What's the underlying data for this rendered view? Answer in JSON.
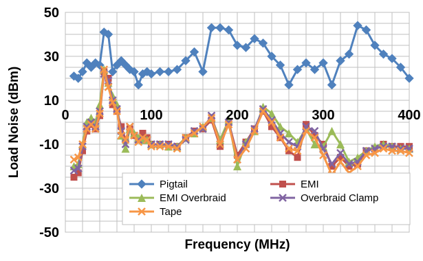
{
  "chart_data": {
    "type": "line",
    "xlabel": "Frequency (MHz)",
    "ylabel": "Load Noise (dBm)",
    "xlim": [
      0,
      400
    ],
    "ylim": [
      -50,
      50
    ],
    "x_ticks": [
      "0",
      "100",
      "200",
      "300",
      "400"
    ],
    "y_ticks": [
      "50",
      "30",
      "10",
      "-10",
      "-30",
      "-50"
    ],
    "grid": true,
    "legend_position": "bottom-right, inside plot",
    "x": [
      10,
      15,
      20,
      25,
      30,
      35,
      40,
      45,
      50,
      55,
      60,
      65,
      70,
      75,
      80,
      85,
      90,
      95,
      100,
      110,
      120,
      130,
      140,
      150,
      160,
      170,
      180,
      190,
      200,
      210,
      220,
      230,
      240,
      250,
      260,
      270,
      280,
      290,
      300,
      310,
      320,
      330,
      340,
      350,
      360,
      370,
      380,
      390,
      400
    ],
    "series": [
      {
        "name": "Pigtail",
        "color": "#4f81bd",
        "marker": "diamond",
        "values": [
          21,
          20,
          23,
          27,
          25,
          27,
          26,
          41,
          40,
          23,
          26,
          28,
          26,
          24,
          23,
          17,
          22,
          23,
          22,
          23,
          23,
          24,
          28,
          32,
          23,
          43,
          43,
          42,
          35,
          34,
          38,
          36,
          30,
          26,
          17,
          24,
          27,
          24,
          27,
          17,
          28,
          31,
          44,
          42,
          35,
          31,
          29,
          25,
          20
        ]
      },
      {
        "name": "EMI",
        "color": "#c0504d",
        "marker": "square",
        "values": [
          -25,
          -23,
          -13,
          -4,
          -1,
          -3,
          3,
          23,
          20,
          8,
          5,
          -2,
          -8,
          -3,
          -6,
          -8,
          -5,
          -7,
          -10,
          -10,
          -10,
          -11,
          -7,
          -4,
          -3,
          1,
          -11,
          0,
          -15,
          -9,
          -3,
          5,
          -2,
          -7,
          -13,
          -16,
          -1,
          -6,
          -10,
          -20,
          -16,
          -20,
          -19,
          -13,
          -12,
          -10,
          -11,
          -11,
          -11
        ]
      },
      {
        "name": "EMI Overbraid",
        "color": "#9bbb59",
        "marker": "triangle",
        "values": [
          -20,
          -19,
          -10,
          0,
          2,
          0,
          8,
          24,
          18,
          12,
          8,
          -6,
          -12,
          -3,
          -5,
          -7,
          -8,
          -8,
          -10,
          -10,
          -11,
          -11,
          -7,
          -5,
          -2,
          2,
          -8,
          1,
          -20,
          -9,
          -4,
          7,
          4,
          -2,
          -5,
          -9,
          -3,
          -10,
          -11,
          -4,
          -10,
          -18,
          -16,
          -13,
          -11,
          -10,
          -11,
          -12,
          -12
        ]
      },
      {
        "name": "Overbraid Clamp",
        "color": "#8064a2",
        "marker": "x",
        "values": [
          -22,
          -21,
          -11,
          -2,
          0,
          -2,
          5,
          22,
          19,
          10,
          6,
          -4,
          -10,
          -2,
          -6,
          -8,
          -7,
          -8,
          -10,
          -10,
          -10,
          -11,
          -8,
          -4,
          -3,
          3,
          -10,
          0,
          -17,
          -10,
          -3,
          6,
          1,
          -5,
          -9,
          -11,
          -2,
          -4,
          -12,
          -19,
          -14,
          -19,
          -18,
          -13,
          -12,
          -11,
          -11,
          -12,
          -12
        ]
      },
      {
        "name": "Tape",
        "color": "#f79646",
        "marker": "x",
        "values": [
          -17,
          -16,
          -10,
          -3,
          -1,
          -3,
          4,
          24,
          16,
          9,
          5,
          -6,
          -8,
          -2,
          -6,
          -9,
          -7,
          -8,
          -11,
          -11,
          -11,
          -12,
          -7,
          -5,
          -2,
          2,
          -10,
          -1,
          -17,
          -12,
          -4,
          5,
          0,
          -7,
          -12,
          -13,
          -4,
          -7,
          -15,
          -24,
          -18,
          -23,
          -20,
          -15,
          -14,
          -12,
          -13,
          -13,
          -14
        ]
      }
    ]
  }
}
